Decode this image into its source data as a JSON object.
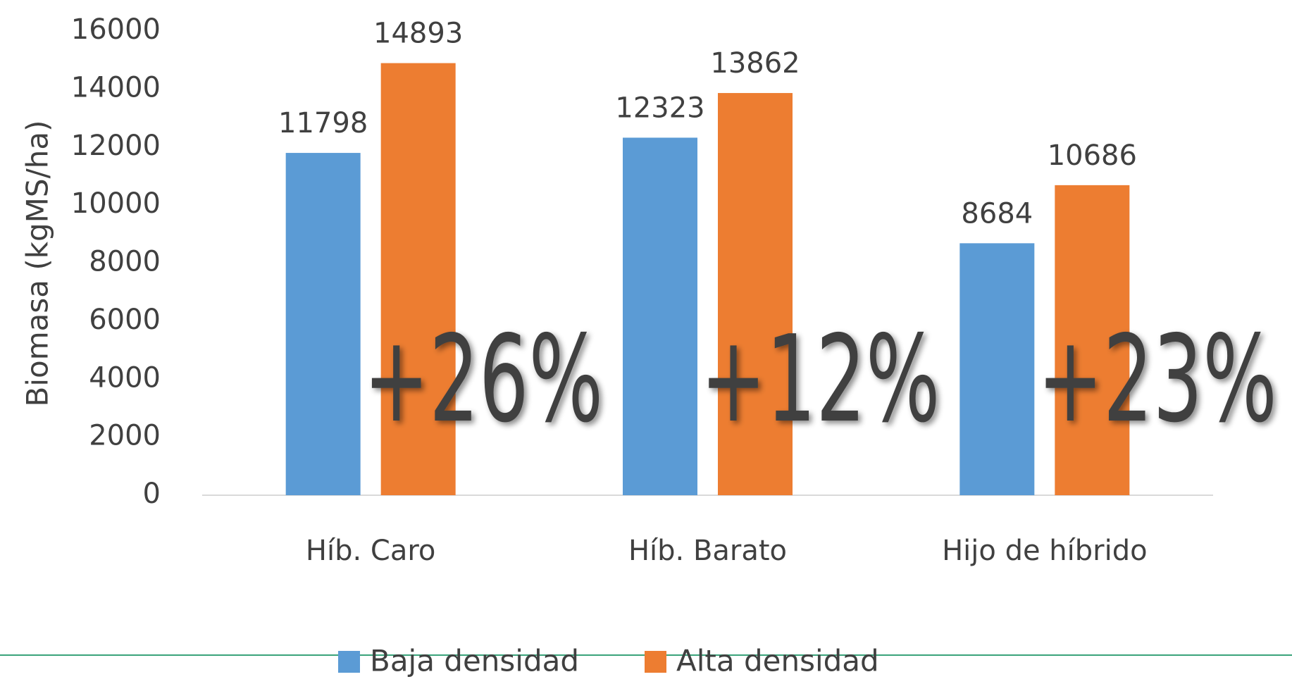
{
  "chart_data": {
    "type": "bar",
    "y_label": "Biomasa (kgMS/ha)",
    "categories": [
      "Híb. Caro",
      "Híb. Barato",
      "Hijo de híbrido"
    ],
    "series": [
      {
        "name": "Baja densidad",
        "color": "#5b9bd5",
        "values": [
          11798,
          12323,
          8684
        ]
      },
      {
        "name": "Alta densidad",
        "color": "#ed7d31",
        "values": [
          14893,
          13862,
          10686
        ]
      }
    ],
    "annotations": [
      "+26%",
      "+12%",
      "+23%"
    ],
    "ylim": [
      0,
      16000
    ],
    "yticks": [
      0,
      2000,
      4000,
      6000,
      8000,
      10000,
      12000,
      14000,
      16000
    ],
    "grid": false,
    "legend": "bottom"
  }
}
